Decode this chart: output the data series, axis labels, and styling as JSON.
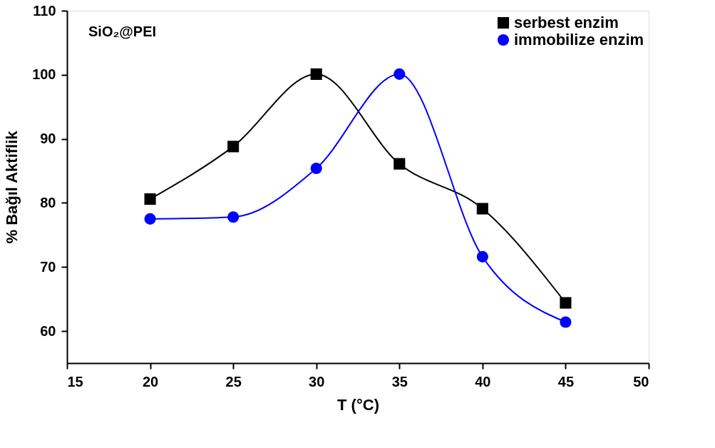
{
  "chart_data": {
    "type": "line",
    "xlabel": "T (°C)",
    "ylabel": "% Bağıl Aktiflik",
    "annotations": [
      "SiO₂@PEI"
    ],
    "x": [
      20,
      25,
      30,
      35,
      40,
      45
    ],
    "series": [
      {
        "name": "serbest enzim",
        "color": "#000000",
        "marker": "square",
        "values": [
          80.6,
          88.8,
          100.1,
          86.1,
          79.1,
          64.4
        ]
      },
      {
        "name": "immobilize enzim",
        "color": "#0000ff",
        "marker": "circle",
        "values": [
          77.5,
          77.8,
          85.4,
          100.1,
          71.6,
          61.4
        ]
      }
    ],
    "xlim": [
      15,
      50
    ],
    "xticks": [
      15,
      20,
      25,
      30,
      35,
      40,
      45,
      50
    ],
    "ylim": [
      55,
      110
    ],
    "yticks": [
      60,
      70,
      80,
      90,
      100,
      110
    ],
    "grid": false,
    "legend": "top right",
    "line_style": "solid"
  }
}
